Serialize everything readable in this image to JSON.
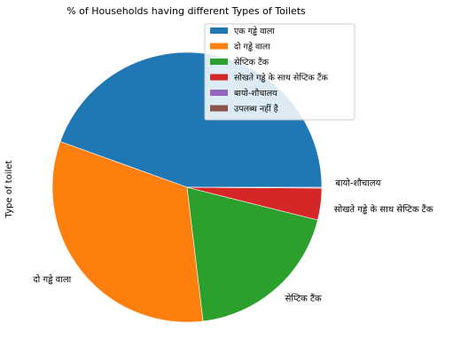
{
  "chart_data": {
    "type": "pie",
    "title": "% of Households having different Types of Toilets",
    "ylabel": "Type of toilet",
    "start_angle_deg": 0,
    "direction": "counterclockwise",
    "slices": [
      {
        "label": "एक गड्ढे वाला",
        "value": 44.5,
        "color": "#1f77b4",
        "show_label": false
      },
      {
        "label": "दो गड्ढे वाला",
        "value": 32.4,
        "color": "#ff7f0e",
        "show_label": true
      },
      {
        "label": "सेप्टिक टैंक",
        "value": 19.2,
        "color": "#2ca02c",
        "show_label": true
      },
      {
        "label": "सोखते गड्ढे के साथ सेप्टिक टैंक",
        "value": 3.8,
        "color": "#d62728",
        "show_label": true
      },
      {
        "label": "बायो-शौचालय",
        "value": 0.1,
        "color": "#9467bd",
        "show_label": true
      },
      {
        "label": "उपलब्ध नहीं है",
        "value": 0.0,
        "color": "#8c564b",
        "show_label": false
      }
    ],
    "legend": {
      "placement": "top-right",
      "entries": [
        "एक गड्ढे वाला",
        "दो गड्ढे वाला",
        "सेप्टिक टैंक",
        "सोखते गड्ढे के साथ सेप्टिक टैंक",
        "बायो-शौचालय",
        "उपलब्ध नहीं है"
      ]
    },
    "faint_overlap_label": "एक गड्ढे वाला"
  }
}
